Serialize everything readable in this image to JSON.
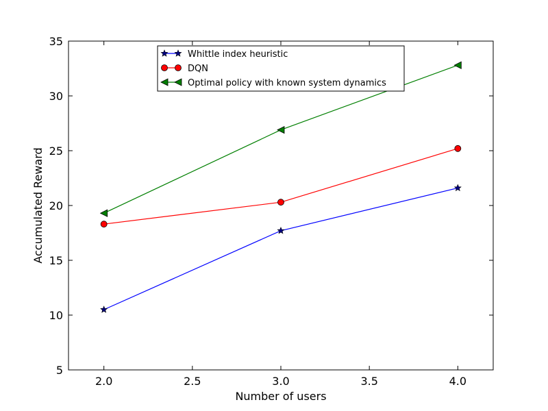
{
  "chart_data": {
    "type": "line",
    "title": "",
    "xlabel": "Number of users",
    "ylabel": "Accumulated Reward",
    "x": [
      2.0,
      3.0,
      4.0
    ],
    "xlim": [
      1.8,
      4.2
    ],
    "ylim": [
      5,
      35
    ],
    "xticks": [
      "2.0",
      "2.5",
      "3.0",
      "3.5",
      "4.0"
    ],
    "yticks": [
      "5",
      "10",
      "15",
      "20",
      "25",
      "30",
      "35"
    ],
    "grid": false,
    "legend_position": "upper-center",
    "series": [
      {
        "name": "Whittle index heuristic",
        "values": [
          10.5,
          17.7,
          21.6
        ],
        "color": "#0000ff",
        "marker": "star",
        "marker_color": "#00007f"
      },
      {
        "name": "DQN",
        "values": [
          18.3,
          20.3,
          25.2
        ],
        "color": "#ff0000",
        "marker": "circle",
        "marker_color": "#ff0000"
      },
      {
        "name": "Optimal policy with known system dynamics",
        "values": [
          19.3,
          26.9,
          32.8
        ],
        "color": "#007f00",
        "marker": "triangle-left",
        "marker_color": "#007f00"
      }
    ]
  }
}
